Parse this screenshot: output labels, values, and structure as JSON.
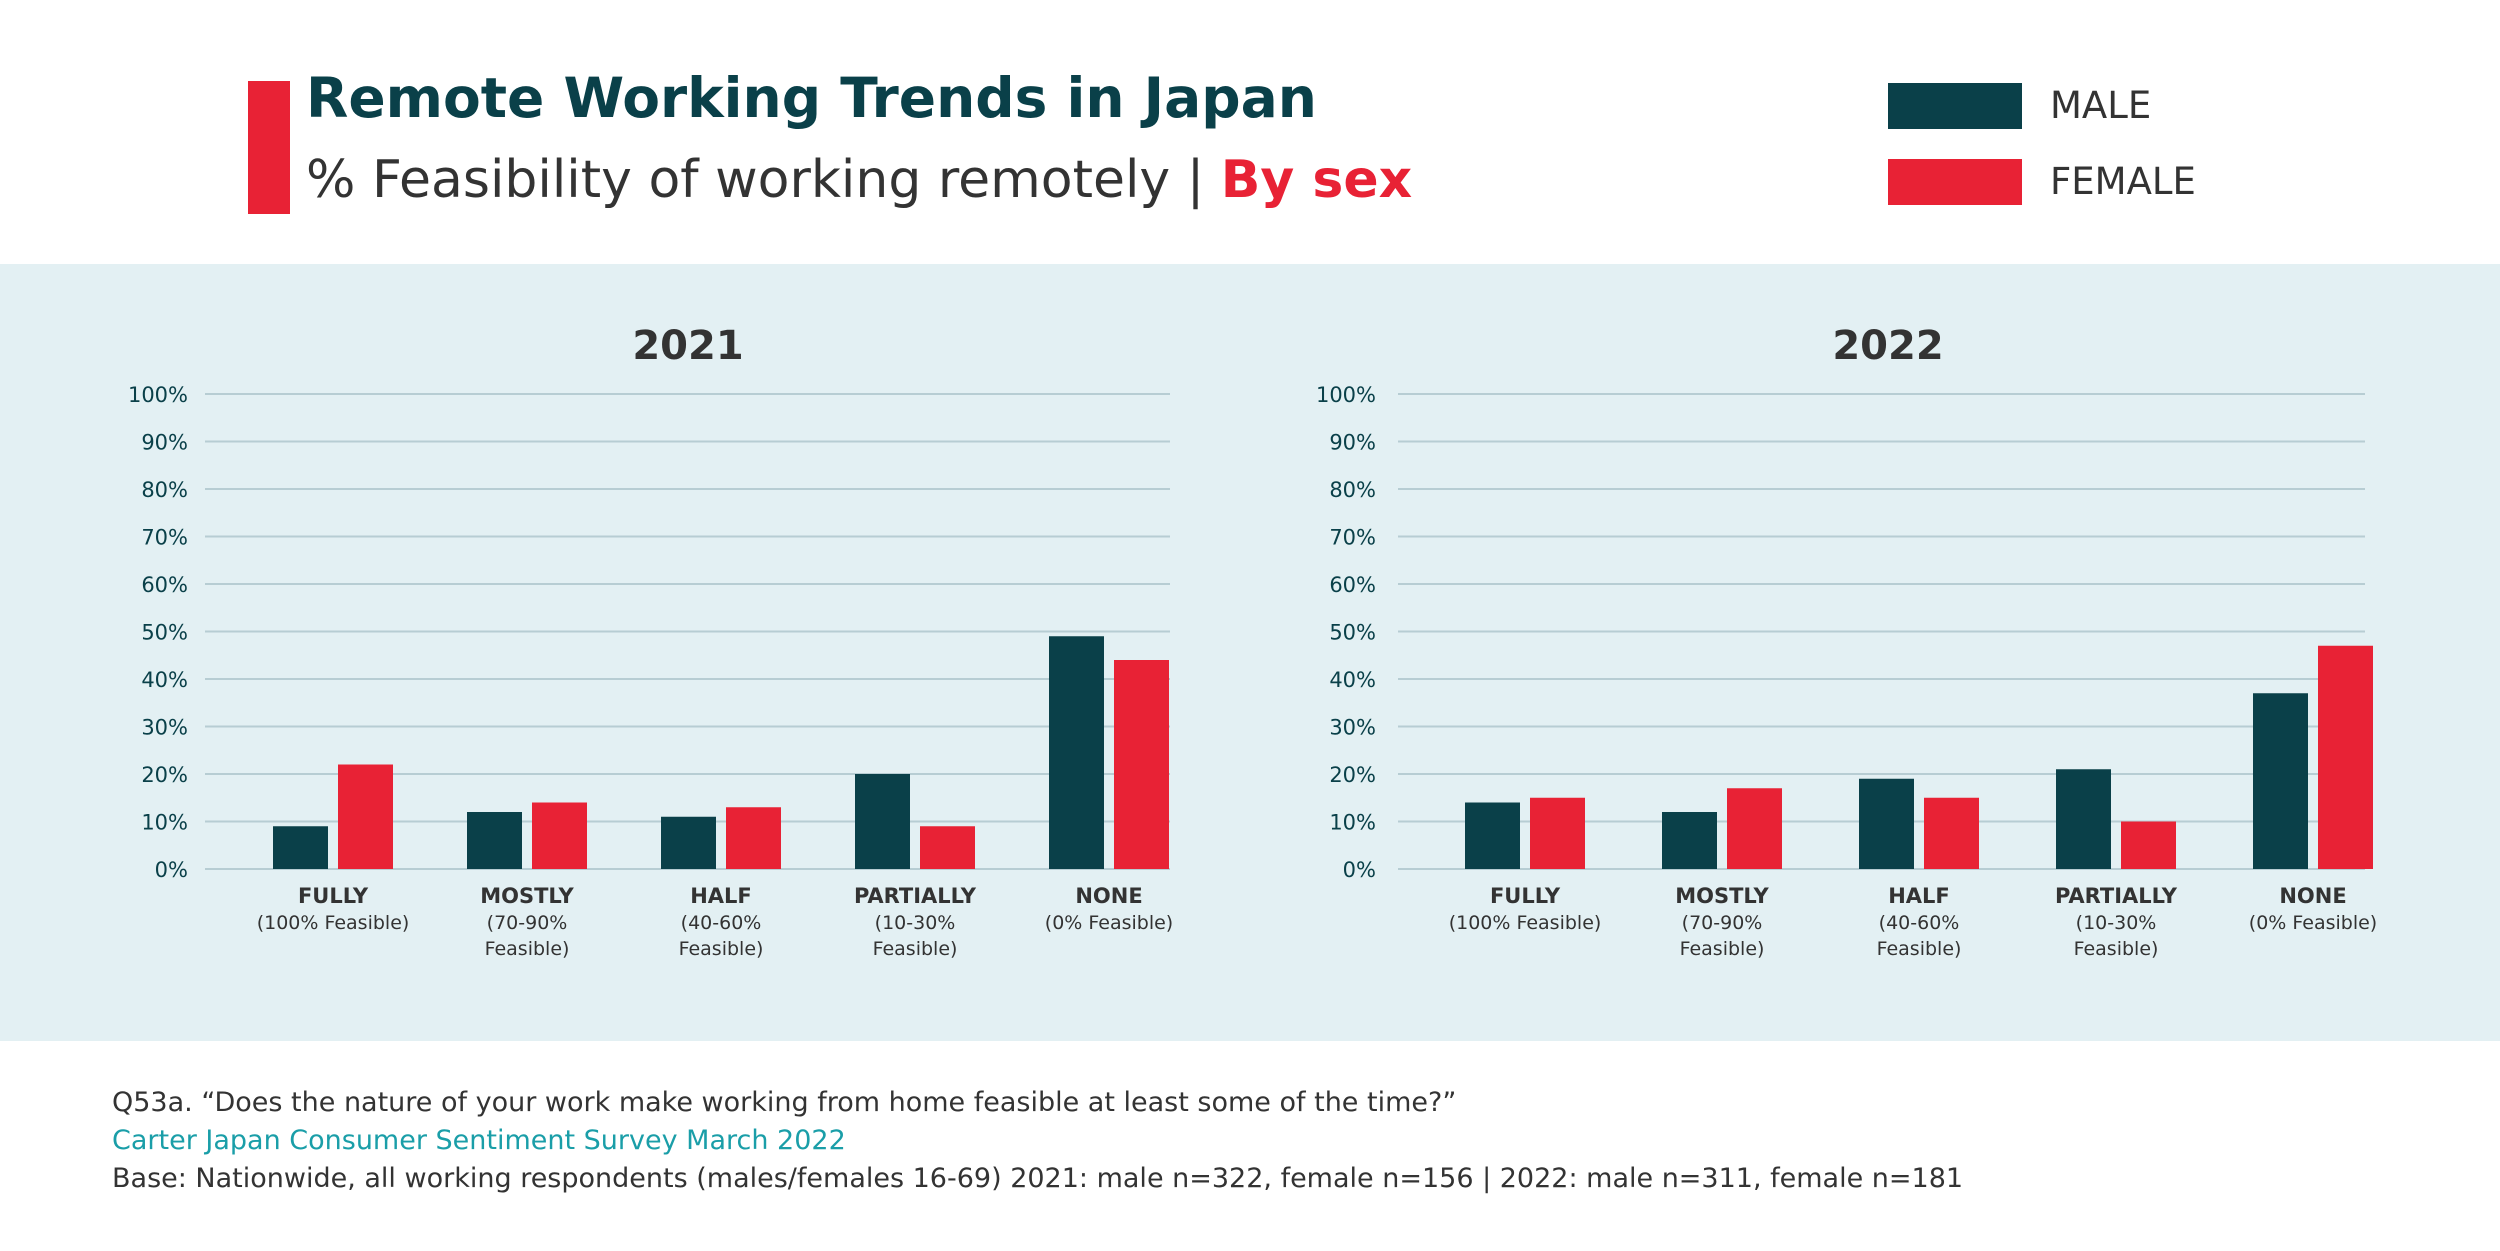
{
  "header": {
    "title": "Remote Working Trends in Japan",
    "subtitle_main": "% Feasibility of working remotely | ",
    "subtitle_highlight": "By sex"
  },
  "legend": [
    {
      "label": "MALE",
      "color": "#0a4049"
    },
    {
      "label": "FEMALE",
      "color": "#e82235"
    }
  ],
  "chart_data": [
    {
      "type": "bar",
      "title": "2021",
      "categories": [
        "FULLY",
        "MOSTLY",
        "HALF",
        "PARTIALLY",
        "NONE"
      ],
      "category_notes": [
        [
          "(100% Feasible)"
        ],
        [
          "(70-90%",
          "Feasible)"
        ],
        [
          "(40-60%",
          "Feasible)"
        ],
        [
          "(10-30%",
          "Feasible)"
        ],
        [
          "(0% Feasible)"
        ]
      ],
      "series": [
        {
          "name": "MALE",
          "values": [
            9,
            12,
            11,
            20,
            49
          ]
        },
        {
          "name": "FEMALE",
          "values": [
            22,
            14,
            13,
            9,
            44
          ]
        }
      ],
      "yticks": [
        "0%",
        "10%",
        "20%",
        "30%",
        "40%",
        "50%",
        "60%",
        "70%",
        "80%",
        "90%",
        "100%"
      ],
      "ylim": [
        0,
        100
      ],
      "grid": true
    },
    {
      "type": "bar",
      "title": "2022",
      "categories": [
        "FULLY",
        "MOSTLY",
        "HALF",
        "PARTIALLY",
        "NONE"
      ],
      "category_notes": [
        [
          "(100% Feasible)"
        ],
        [
          "(70-90%",
          "Feasible)"
        ],
        [
          "(40-60%",
          "Feasible)"
        ],
        [
          "(10-30%",
          "Feasible)"
        ],
        [
          "(0% Feasible)"
        ]
      ],
      "series": [
        {
          "name": "MALE",
          "values": [
            14,
            12,
            19,
            21,
            37
          ]
        },
        {
          "name": "FEMALE",
          "values": [
            15,
            17,
            15,
            10,
            47
          ]
        }
      ],
      "yticks": [
        "0%",
        "10%",
        "20%",
        "30%",
        "40%",
        "50%",
        "60%",
        "70%",
        "80%",
        "90%",
        "100%"
      ],
      "ylim": [
        0,
        100
      ],
      "grid": true
    }
  ],
  "footer": {
    "question": "Q53a. “Does the nature of your work make working from home feasible at least some of the time?”",
    "source": "Carter Japan Consumer Sentiment Survey March 2022",
    "base": "Base: Nationwide, all working respondents (males/females 16-69) 2021: male n=322, female n=156 | 2022: male n=311, female n=181"
  }
}
